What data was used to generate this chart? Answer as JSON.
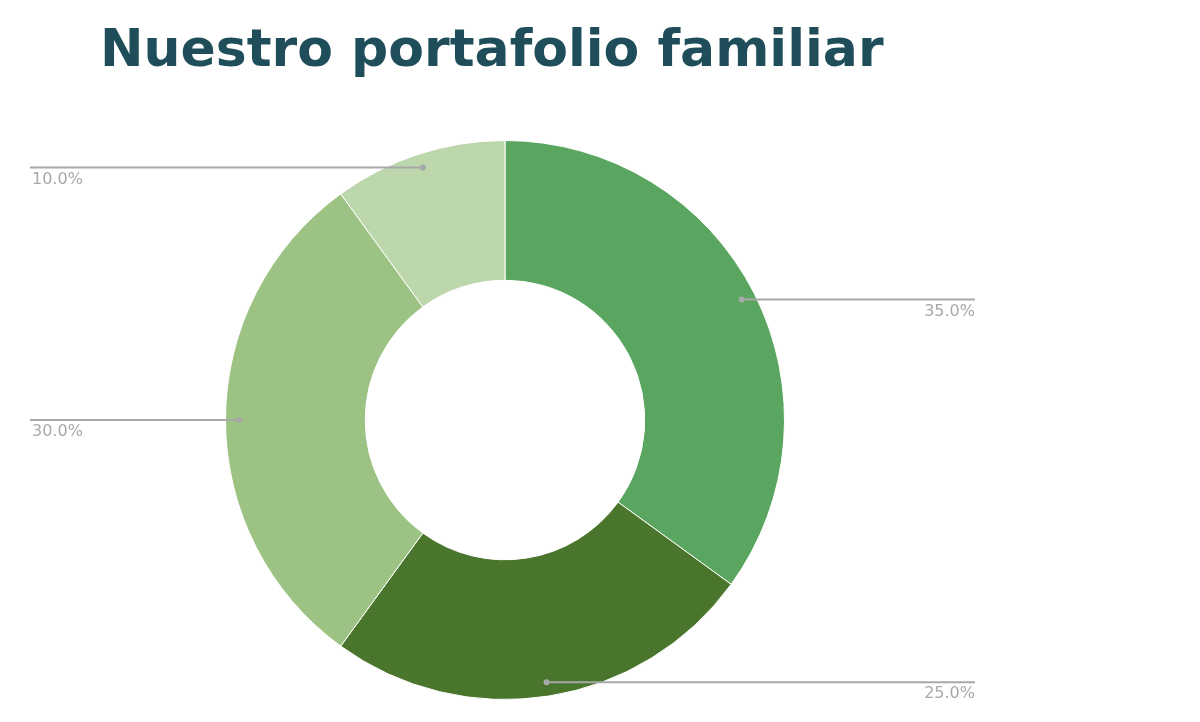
{
  "chart_data": {
    "type": "donut",
    "title": "Nuestro portafolio familiar",
    "categories": [
      null,
      null,
      null,
      null
    ],
    "values": [
      35,
      25,
      30,
      10
    ],
    "colors": [
      "#5aa660",
      "#4a752c",
      "#9dc384",
      "#bdd7ac"
    ],
    "value_labels": [
      "35.0%",
      "25.0%",
      "30.0%",
      "10.0%"
    ],
    "legend": false
  }
}
